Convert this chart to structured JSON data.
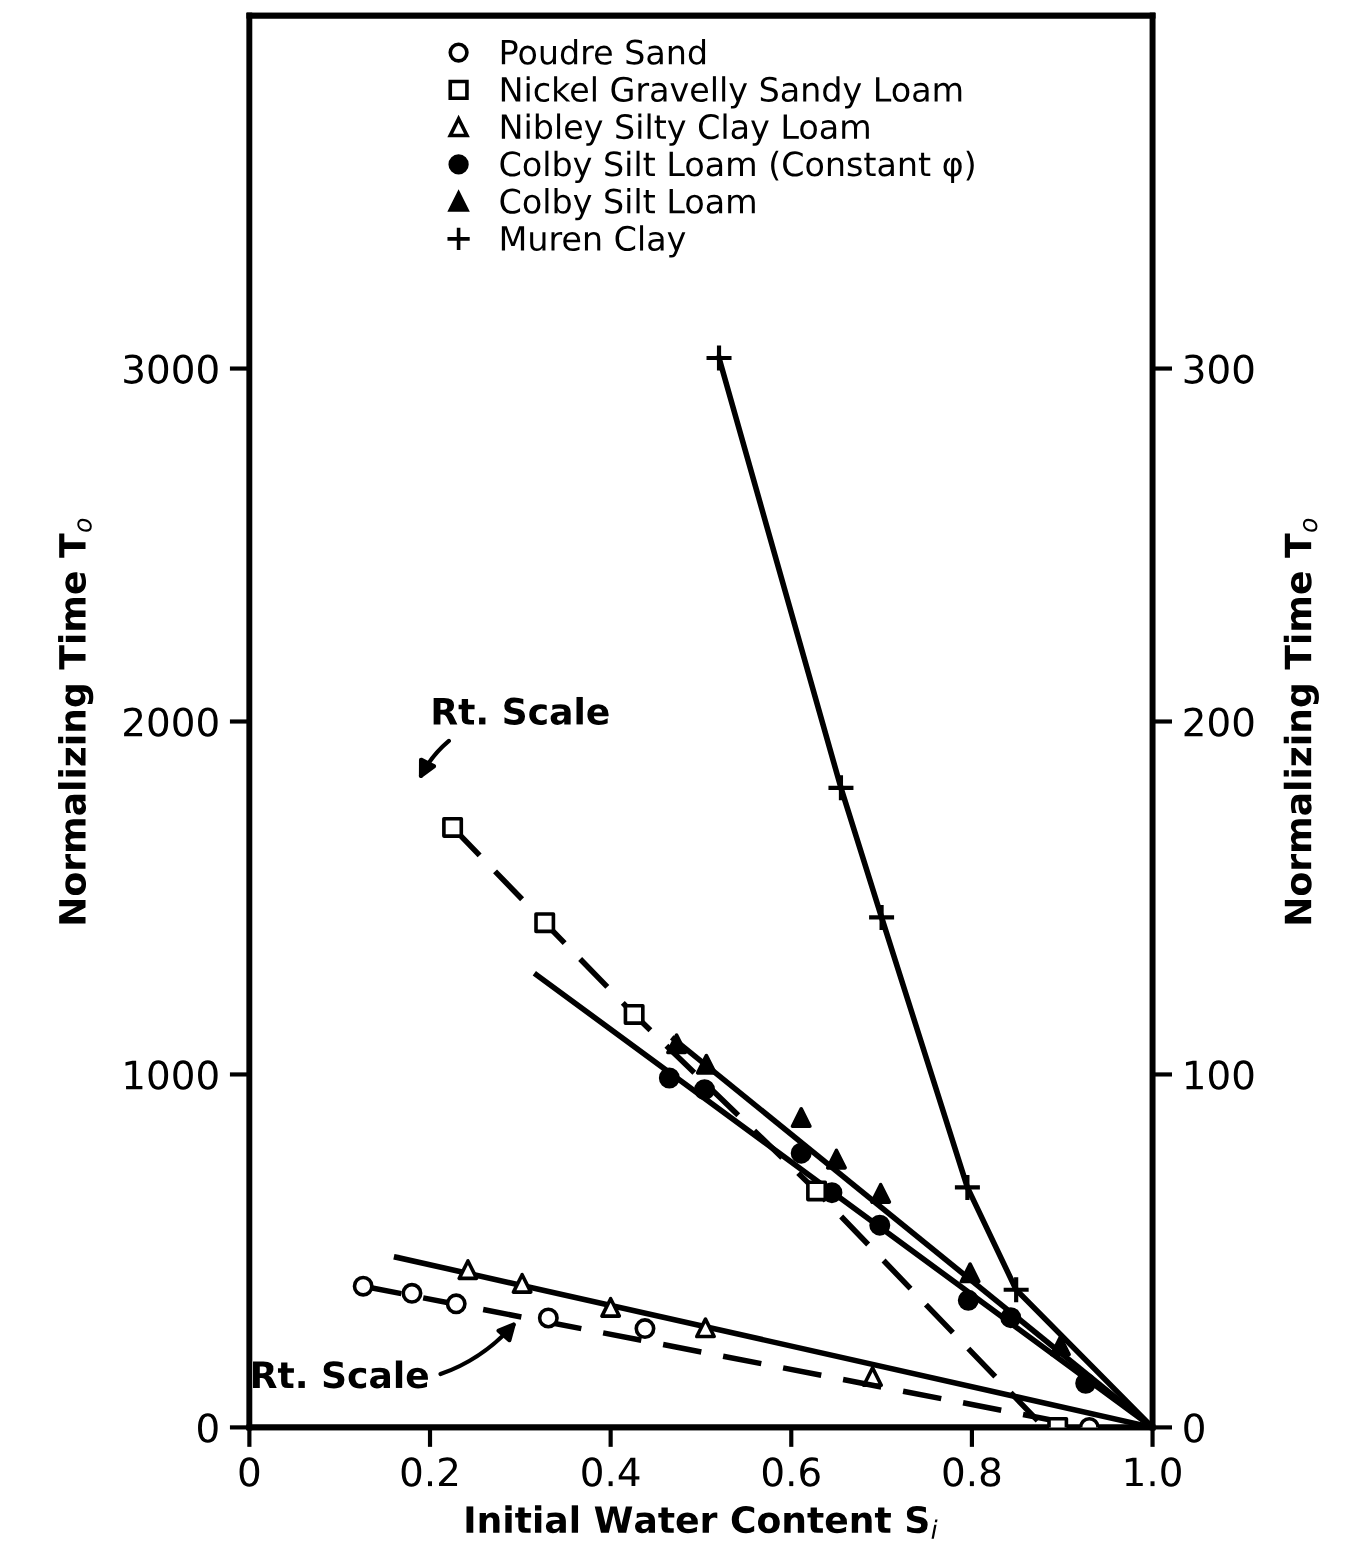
{
  "chart_data": {
    "type": "scatter",
    "xlabel": "Initial Water Content S$_{i}$",
    "ylabel": "Normalizing Time T$_{o}$",
    "y2label": "Normalizing Time T$_{o}$",
    "xlim": [
      0,
      1.0
    ],
    "xticks": [
      0,
      {
        "value": 0.2,
        "label": "0.2"
      },
      {
        "value": 0.4,
        "label": "0.4"
      },
      {
        "value": 0.6,
        "label": "0.6"
      },
      {
        "value": 0.8,
        "label": "0.8"
      },
      {
        "value": 1.0,
        "label": "1.0"
      }
    ],
    "ylim": [
      0,
      4000
    ],
    "yticks": [
      0,
      1000,
      2000,
      3000
    ],
    "y2lim": [
      0,
      400
    ],
    "y2ticks": [
      0,
      100,
      200,
      300
    ],
    "legend": "top",
    "grid": false,
    "series": [
      {
        "name": "Poudre Sand",
        "marker": "circle",
        "axis": "y2",
        "color": "#ffffff",
        "x": [
          0.126,
          0.18,
          0.229,
          0.331,
          0.438,
          0.93
        ],
        "values": [
          40,
          38,
          35,
          31,
          28,
          0
        ]
      },
      {
        "name": "Nickel Gravelly Sandy Loam",
        "marker": "square",
        "axis": "y2",
        "color": "#ffffff",
        "x": [
          0.225,
          0.327,
          0.426,
          0.628,
          0.895
        ],
        "values": [
          170,
          143,
          117,
          67,
          0
        ]
      },
      {
        "name": "Nibley Silty Clay Loam",
        "marker": "triangle",
        "color": "#ffffff",
        "x": [
          0.242,
          0.302,
          0.4,
          0.505,
          0.69
        ],
        "values": [
          447,
          408,
          340,
          282,
          144
        ]
      },
      {
        "name": "Colby Silt Loam (Constant φ)",
        "marker": "circle",
        "color": "#000000",
        "x": [
          0.465,
          0.504,
          0.611,
          0.645,
          0.698,
          0.796,
          0.843,
          0.926
        ],
        "values": [
          990,
          957,
          777,
          665,
          573,
          360,
          311,
          125
        ]
      },
      {
        "name": "Colby Silt Loam",
        "marker": "triangle",
        "color": "#000000",
        "x": [
          0.473,
          0.506,
          0.611,
          0.65,
          0.699,
          0.798,
          0.898
        ],
        "values": [
          1087,
          1029,
          878,
          760,
          663,
          438,
          231
        ]
      },
      {
        "name": "Muren Clay",
        "type": "line",
        "marker": "cross",
        "line_style": "solid",
        "color": "#000000",
        "x": [
          0.52,
          0.655,
          0.7,
          0.795,
          0.849,
          1.0
        ],
        "values": [
          3030,
          1812,
          1445,
          680,
          390,
          0
        ]
      },
      {
        "type": "line",
        "line_style": "dashed",
        "axis": "y2",
        "color": "#000000",
        "x": [
          0.126,
          0.93
        ],
        "values": [
          40,
          0
        ]
      },
      {
        "type": "line",
        "line_style": "dashed",
        "axis": "y2",
        "color": "#000000",
        "x": [
          0.225,
          0.327,
          0.426,
          0.628,
          0.88
        ],
        "values": [
          170,
          143,
          117,
          67,
          0
        ]
      },
      {
        "type": "line",
        "line_style": "solid",
        "color": "#000000",
        "x": [
          0.163,
          1.0
        ],
        "values": [
          482,
          0
        ]
      },
      {
        "type": "line",
        "line_style": "solid",
        "color": "#000000",
        "x": [
          0.318,
          1.0
        ],
        "values": [
          1282,
          0
        ]
      },
      {
        "type": "line",
        "line_style": "solid",
        "color": "#000000",
        "x": [
          0.47,
          1.0
        ],
        "values": [
          1100,
          0
        ]
      }
    ],
    "annotations": [
      "Rt. Scale",
      {
        "text": "Rt. Scale",
        "x": 0.3,
        "y": 313
      }
    ]
  }
}
